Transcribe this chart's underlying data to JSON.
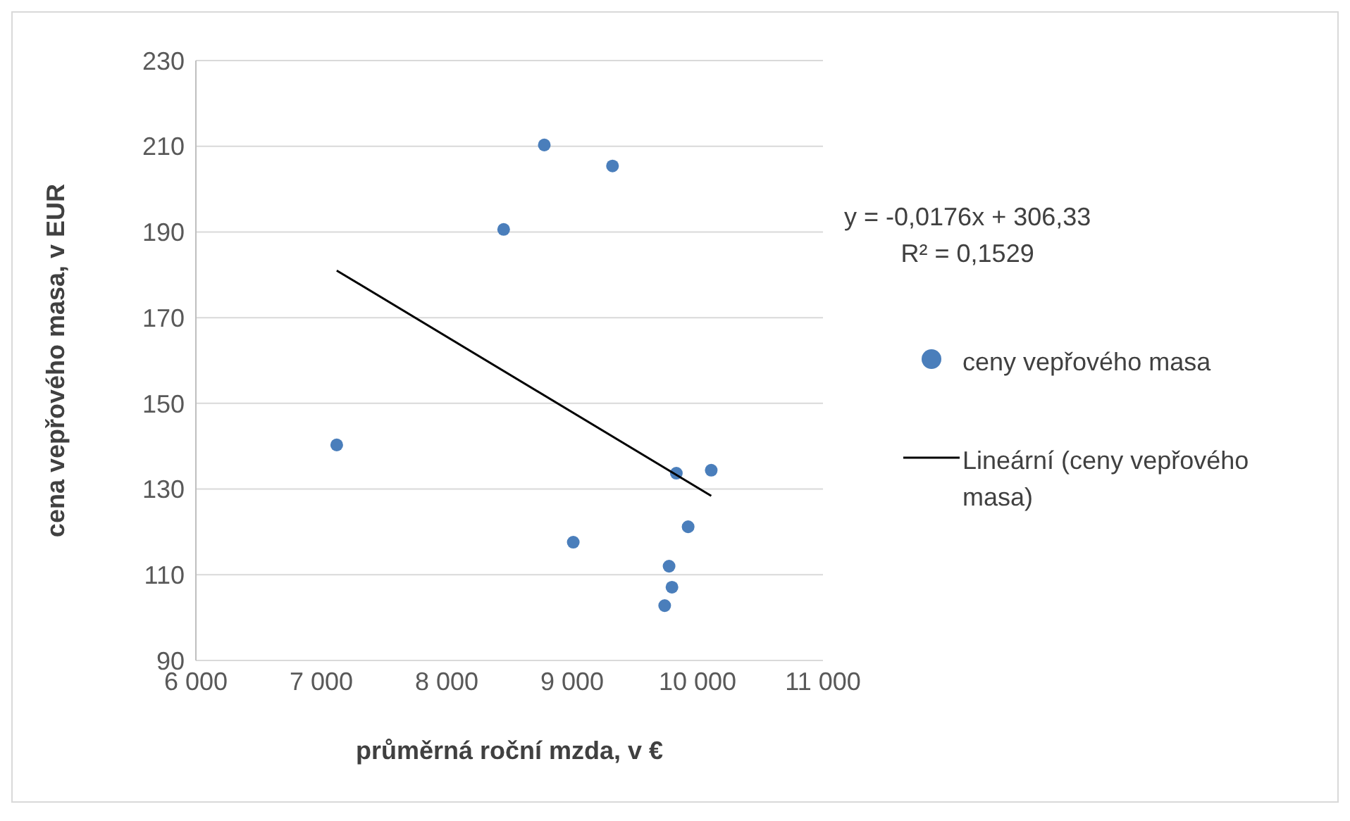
{
  "chart_data": {
    "type": "scatter",
    "xlabel": "průměrná roční mzda, v €",
    "ylabel": "cena vepřového masa, v EUR",
    "series": [
      {
        "name": "ceny vepřového masa",
        "type": "scatter",
        "color": "#4a7ebb",
        "marker": "circle",
        "x": [
          7123,
          8778,
          9322,
          8454,
          9009,
          9831,
          10109,
          9925,
          9773,
          9796,
          9738
        ],
        "values": [
          140.3,
          210.3,
          205.4,
          190.6,
          117.6,
          133.7,
          134.4,
          121.2,
          112.0,
          107.1,
          102.8
        ]
      },
      {
        "name": "Lineární (ceny vepřového masa)",
        "type": "line",
        "color": "#000000",
        "line_style": "solid",
        "x": [
          7123,
          10109
        ],
        "values": [
          181,
          128.4
        ]
      }
    ],
    "xlim": [
      6000,
      11000
    ],
    "xticks": [
      {
        "value": 6000,
        "label": "6 000"
      },
      {
        "value": 7000,
        "label": "7 000"
      },
      {
        "value": 8000,
        "label": "8 000"
      },
      {
        "value": 9000,
        "label": "9 000"
      },
      {
        "value": 10000,
        "label": "10 000"
      },
      {
        "value": 11000,
        "label": "11 000"
      }
    ],
    "ylim": [
      90,
      230
    ],
    "yticks": [
      90,
      110,
      130,
      150,
      170,
      190,
      210,
      230
    ],
    "grid": "y",
    "legend": "right",
    "annotations": [
      "y = -0,0176x + 306,33",
      "R² = 0,1529"
    ]
  }
}
